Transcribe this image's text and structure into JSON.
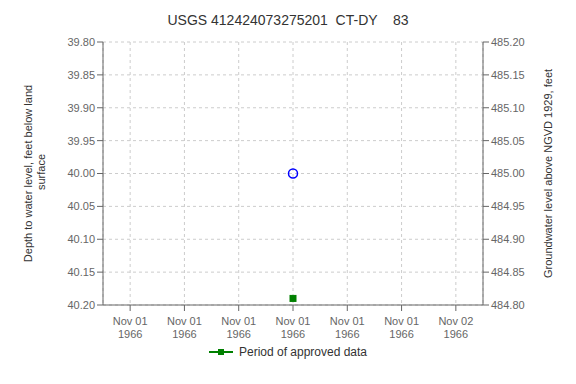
{
  "chart_data": {
    "type": "scatter",
    "title": "USGS 412424073275201  CT-DY    83",
    "y_label": "Depth to water level, feet below land\n surface",
    "y2_label": "Groundwater level above NGVD 1929, feet",
    "categories": [
      "Nov 01\n1966",
      "Nov 01\n1966",
      "Nov 01\n1966",
      "Nov 01\n1966",
      "Nov 01\n1966",
      "Nov 01\n1966",
      "Nov 02\n1966"
    ],
    "ylim": [
      40.2,
      39.8
    ],
    "yticks": [
      {
        "value": 39.8,
        "label": "39.80"
      },
      {
        "value": 39.85,
        "label": "39.85"
      },
      {
        "value": 39.9,
        "label": "39.90"
      },
      {
        "value": 39.95,
        "label": "39.95"
      },
      {
        "value": 40.0,
        "label": "40.00"
      },
      {
        "value": 40.05,
        "label": "40.05"
      },
      {
        "value": 40.1,
        "label": "40.10"
      },
      {
        "value": 40.15,
        "label": "40.15"
      },
      {
        "value": 40.2,
        "label": "40.20"
      }
    ],
    "y2lim": [
      484.8,
      485.2
    ],
    "y2ticks": [
      {
        "value": 485.2,
        "label": "485.20"
      },
      {
        "value": 485.15,
        "label": "485.15"
      },
      {
        "value": 485.1,
        "label": "485.10"
      },
      {
        "value": 485.05,
        "label": "485.05"
      },
      {
        "value": 485.0,
        "label": "485.00"
      },
      {
        "value": 484.95,
        "label": "484.95"
      },
      {
        "value": 484.9,
        "label": "484.90"
      },
      {
        "value": 484.85,
        "label": "484.85"
      },
      {
        "value": 484.8,
        "label": "484.80"
      }
    ],
    "grid": true,
    "legend": "bottom",
    "series": [
      {
        "color": "#0000ff",
        "marker": "circle",
        "values": [
          null,
          null,
          null,
          40.0,
          null,
          null,
          null
        ]
      },
      {
        "name": "Period of approved data",
        "color": "#008000",
        "marker": "square",
        "values": [
          null,
          null,
          null,
          40.19,
          null,
          null,
          null
        ]
      }
    ]
  }
}
